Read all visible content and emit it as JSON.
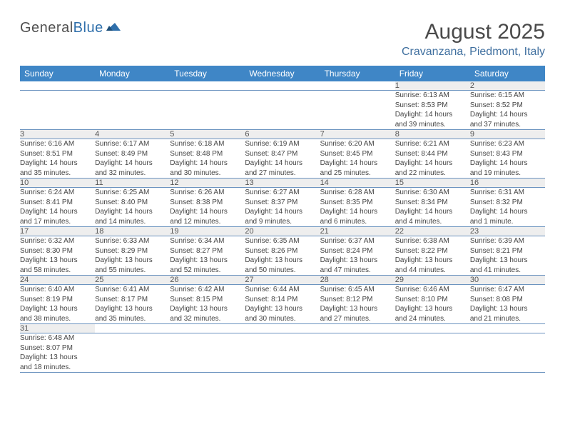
{
  "logo": {
    "text1": "General",
    "text2": "Blue"
  },
  "title": "August 2025",
  "subtitle": "Cravanzana, Piedmont, Italy",
  "colors": {
    "header_bg": "#3f86c6",
    "header_fg": "#ffffff",
    "daynum_bg": "#eeeeee",
    "row_border": "#6b93bf",
    "subtitle": "#3f6f9f"
  },
  "weekdays": [
    "Sunday",
    "Monday",
    "Tuesday",
    "Wednesday",
    "Thursday",
    "Friday",
    "Saturday"
  ],
  "weeks": [
    [
      null,
      null,
      null,
      null,
      null,
      {
        "n": "1",
        "sr": "Sunrise: 6:13 AM",
        "ss": "Sunset: 8:53 PM",
        "d1": "Daylight: 14 hours",
        "d2": "and 39 minutes."
      },
      {
        "n": "2",
        "sr": "Sunrise: 6:15 AM",
        "ss": "Sunset: 8:52 PM",
        "d1": "Daylight: 14 hours",
        "d2": "and 37 minutes."
      }
    ],
    [
      {
        "n": "3",
        "sr": "Sunrise: 6:16 AM",
        "ss": "Sunset: 8:51 PM",
        "d1": "Daylight: 14 hours",
        "d2": "and 35 minutes."
      },
      {
        "n": "4",
        "sr": "Sunrise: 6:17 AM",
        "ss": "Sunset: 8:49 PM",
        "d1": "Daylight: 14 hours",
        "d2": "and 32 minutes."
      },
      {
        "n": "5",
        "sr": "Sunrise: 6:18 AM",
        "ss": "Sunset: 8:48 PM",
        "d1": "Daylight: 14 hours",
        "d2": "and 30 minutes."
      },
      {
        "n": "6",
        "sr": "Sunrise: 6:19 AM",
        "ss": "Sunset: 8:47 PM",
        "d1": "Daylight: 14 hours",
        "d2": "and 27 minutes."
      },
      {
        "n": "7",
        "sr": "Sunrise: 6:20 AM",
        "ss": "Sunset: 8:45 PM",
        "d1": "Daylight: 14 hours",
        "d2": "and 25 minutes."
      },
      {
        "n": "8",
        "sr": "Sunrise: 6:21 AM",
        "ss": "Sunset: 8:44 PM",
        "d1": "Daylight: 14 hours",
        "d2": "and 22 minutes."
      },
      {
        "n": "9",
        "sr": "Sunrise: 6:23 AM",
        "ss": "Sunset: 8:43 PM",
        "d1": "Daylight: 14 hours",
        "d2": "and 19 minutes."
      }
    ],
    [
      {
        "n": "10",
        "sr": "Sunrise: 6:24 AM",
        "ss": "Sunset: 8:41 PM",
        "d1": "Daylight: 14 hours",
        "d2": "and 17 minutes."
      },
      {
        "n": "11",
        "sr": "Sunrise: 6:25 AM",
        "ss": "Sunset: 8:40 PM",
        "d1": "Daylight: 14 hours",
        "d2": "and 14 minutes."
      },
      {
        "n": "12",
        "sr": "Sunrise: 6:26 AM",
        "ss": "Sunset: 8:38 PM",
        "d1": "Daylight: 14 hours",
        "d2": "and 12 minutes."
      },
      {
        "n": "13",
        "sr": "Sunrise: 6:27 AM",
        "ss": "Sunset: 8:37 PM",
        "d1": "Daylight: 14 hours",
        "d2": "and 9 minutes."
      },
      {
        "n": "14",
        "sr": "Sunrise: 6:28 AM",
        "ss": "Sunset: 8:35 PM",
        "d1": "Daylight: 14 hours",
        "d2": "and 6 minutes."
      },
      {
        "n": "15",
        "sr": "Sunrise: 6:30 AM",
        "ss": "Sunset: 8:34 PM",
        "d1": "Daylight: 14 hours",
        "d2": "and 4 minutes."
      },
      {
        "n": "16",
        "sr": "Sunrise: 6:31 AM",
        "ss": "Sunset: 8:32 PM",
        "d1": "Daylight: 14 hours",
        "d2": "and 1 minute."
      }
    ],
    [
      {
        "n": "17",
        "sr": "Sunrise: 6:32 AM",
        "ss": "Sunset: 8:30 PM",
        "d1": "Daylight: 13 hours",
        "d2": "and 58 minutes."
      },
      {
        "n": "18",
        "sr": "Sunrise: 6:33 AM",
        "ss": "Sunset: 8:29 PM",
        "d1": "Daylight: 13 hours",
        "d2": "and 55 minutes."
      },
      {
        "n": "19",
        "sr": "Sunrise: 6:34 AM",
        "ss": "Sunset: 8:27 PM",
        "d1": "Daylight: 13 hours",
        "d2": "and 52 minutes."
      },
      {
        "n": "20",
        "sr": "Sunrise: 6:35 AM",
        "ss": "Sunset: 8:26 PM",
        "d1": "Daylight: 13 hours",
        "d2": "and 50 minutes."
      },
      {
        "n": "21",
        "sr": "Sunrise: 6:37 AM",
        "ss": "Sunset: 8:24 PM",
        "d1": "Daylight: 13 hours",
        "d2": "and 47 minutes."
      },
      {
        "n": "22",
        "sr": "Sunrise: 6:38 AM",
        "ss": "Sunset: 8:22 PM",
        "d1": "Daylight: 13 hours",
        "d2": "and 44 minutes."
      },
      {
        "n": "23",
        "sr": "Sunrise: 6:39 AM",
        "ss": "Sunset: 8:21 PM",
        "d1": "Daylight: 13 hours",
        "d2": "and 41 minutes."
      }
    ],
    [
      {
        "n": "24",
        "sr": "Sunrise: 6:40 AM",
        "ss": "Sunset: 8:19 PM",
        "d1": "Daylight: 13 hours",
        "d2": "and 38 minutes."
      },
      {
        "n": "25",
        "sr": "Sunrise: 6:41 AM",
        "ss": "Sunset: 8:17 PM",
        "d1": "Daylight: 13 hours",
        "d2": "and 35 minutes."
      },
      {
        "n": "26",
        "sr": "Sunrise: 6:42 AM",
        "ss": "Sunset: 8:15 PM",
        "d1": "Daylight: 13 hours",
        "d2": "and 32 minutes."
      },
      {
        "n": "27",
        "sr": "Sunrise: 6:44 AM",
        "ss": "Sunset: 8:14 PM",
        "d1": "Daylight: 13 hours",
        "d2": "and 30 minutes."
      },
      {
        "n": "28",
        "sr": "Sunrise: 6:45 AM",
        "ss": "Sunset: 8:12 PM",
        "d1": "Daylight: 13 hours",
        "d2": "and 27 minutes."
      },
      {
        "n": "29",
        "sr": "Sunrise: 6:46 AM",
        "ss": "Sunset: 8:10 PM",
        "d1": "Daylight: 13 hours",
        "d2": "and 24 minutes."
      },
      {
        "n": "30",
        "sr": "Sunrise: 6:47 AM",
        "ss": "Sunset: 8:08 PM",
        "d1": "Daylight: 13 hours",
        "d2": "and 21 minutes."
      }
    ],
    [
      {
        "n": "31",
        "sr": "Sunrise: 6:48 AM",
        "ss": "Sunset: 8:07 PM",
        "d1": "Daylight: 13 hours",
        "d2": "and 18 minutes."
      },
      null,
      null,
      null,
      null,
      null,
      null
    ]
  ]
}
